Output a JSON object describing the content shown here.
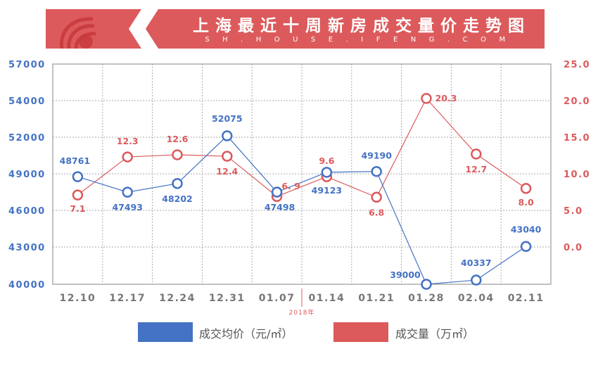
{
  "header": {
    "title": "上海最近十周新房成交量价走势图",
    "subtitle": "SH.HOUSE.IFENG.COM",
    "banner_color": "#dc5a5c"
  },
  "chart_data": {
    "type": "line",
    "title": "上海最近十周新房成交量价走势图",
    "categories": [
      "12.10",
      "12.17",
      "12.24",
      "12.31",
      "01.07",
      "01.14",
      "01.21",
      "01.28",
      "02.04",
      "02.11"
    ],
    "series": [
      {
        "name": "成交均价（元/㎡）",
        "axis": "left",
        "color": "#4472c4",
        "values": [
          48761,
          47493,
          48202,
          52075,
          47498,
          49123,
          49190,
          39000,
          40337,
          43040
        ],
        "labels": [
          "48761",
          "47493",
          "48202",
          "52075",
          "47498",
          "49123",
          "49190",
          "39000",
          "40337",
          "43040"
        ]
      },
      {
        "name": "成交量（万㎡）",
        "axis": "right",
        "color": "#dc5a5c",
        "values": [
          7.1,
          12.3,
          12.6,
          12.4,
          6.9,
          9.6,
          6.8,
          20.3,
          12.7,
          8.0
        ],
        "labels": [
          "7.1",
          "12.3",
          "12.6",
          "12.4",
          "6. 9",
          "9.6",
          "6.8",
          "20.3",
          "12.7",
          "8.0"
        ]
      }
    ],
    "left_axis": {
      "tick_labels": [
        "57000",
        "54000",
        "52000",
        "49000",
        "46000",
        "43000",
        "40000"
      ],
      "color": "#4472c4"
    },
    "right_axis": {
      "tick_labels": [
        "25.0",
        "20.0",
        "15.0",
        "10.0",
        "5.0",
        "0.0"
      ],
      "ylim": [
        0,
        25
      ],
      "color": "#dc5a5c"
    },
    "annotations": [
      {
        "text": "2018年",
        "position": "between 01.07 and 01.14",
        "color": "#dc5a5c"
      }
    ],
    "grid": true,
    "legend_position": "bottom"
  },
  "legend": {
    "items": [
      {
        "label": "成交均价（元/㎡）",
        "color": "#4472c4"
      },
      {
        "label": "成交量（万㎡）",
        "color": "#dc5a5c"
      }
    ]
  }
}
